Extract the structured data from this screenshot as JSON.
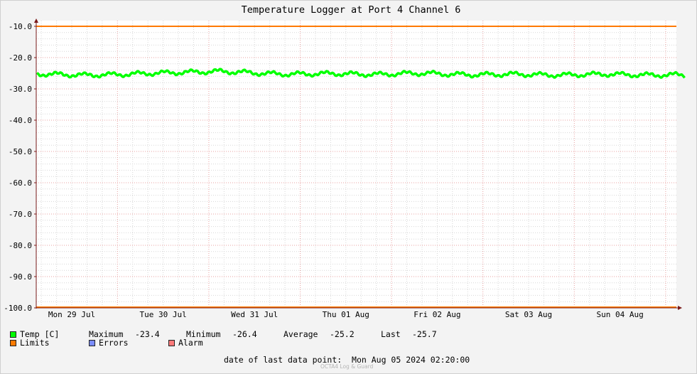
{
  "chart_data": {
    "type": "line",
    "title": "Temperature Logger at Port 4 Channel 6",
    "ylim": [
      -100.0,
      -10.0
    ],
    "y_ticks": [
      "-10.0",
      "-20.0",
      "-30.0",
      "-40.0",
      "-50.0",
      "-60.0",
      "-70.0",
      "-80.0",
      "-90.0",
      "-100.0"
    ],
    "x_ticks": [
      "Mon 29 Jul",
      "Tue 30 Jul",
      "Wed 31 Jul",
      "Thu 01 Aug",
      "Fri 02 Aug",
      "Sat 03 Aug",
      "Sun 04 Aug"
    ],
    "xlim_days": [
      0,
      7.1
    ],
    "grid": true,
    "limits": {
      "upper": -10.0,
      "lower": -100.0
    },
    "series": [
      {
        "name": "Temp [C]",
        "x_days": [
          0,
          0.25,
          0.5,
          0.75,
          1.0,
          1.25,
          1.5,
          1.75,
          2.0,
          2.25,
          2.5,
          2.75,
          3.0,
          3.25,
          3.5,
          3.75,
          4.0,
          4.25,
          4.5,
          4.75,
          5.0,
          5.25,
          5.5,
          5.75,
          6.0,
          6.25,
          6.5,
          6.75,
          7.0,
          7.1
        ],
        "values": [
          -25.2,
          -25.4,
          -25.6,
          -25.5,
          -25.3,
          -25.0,
          -24.8,
          -24.6,
          -24.4,
          -24.7,
          -25.1,
          -25.3,
          -25.2,
          -25.1,
          -25.3,
          -25.4,
          -25.1,
          -25.0,
          -25.3,
          -25.5,
          -25.4,
          -25.3,
          -25.5,
          -25.6,
          -25.4,
          -25.3,
          -25.5,
          -25.6,
          -25.5,
          -25.7
        ]
      }
    ]
  },
  "legend": {
    "temp_label": "Temp [C]",
    "max_label": "Maximum",
    "max_value": "-23.4",
    "min_label": "Minimum",
    "min_value": "-26.4",
    "avg_label": "Average",
    "avg_value": "-25.2",
    "last_label": "Last",
    "last_value": "-25.7",
    "limits_label": "Limits",
    "errors_label": "Errors",
    "alarm_label": "Alarm"
  },
  "footer": {
    "date_label": "date of last data point:",
    "date_value": "Mon Aug 05 2024 02:20:00",
    "watermark": "OCTA4 Log & Guard"
  },
  "colors": {
    "temp": "#00ff00",
    "limits": "#ff7a00",
    "errors": "#7a8cff",
    "alarm": "#ff7a7a",
    "grid_major": "#e8a0a0",
    "grid_minor": "#d7d7d7",
    "background": "#f3f3f3",
    "plot_bg": "#ffffff"
  }
}
